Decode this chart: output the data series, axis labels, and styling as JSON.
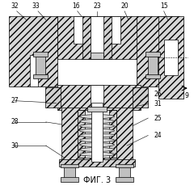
{
  "title": "ФИГ. 3",
  "title_fontsize": 7,
  "background_color": "#ffffff",
  "label_fontsize": 5.5,
  "fig_width": 2.4,
  "fig_height": 2.35,
  "hatch_color": "#888888",
  "body_color": "#e0e0e0",
  "inner_color": "#f5f5f5"
}
